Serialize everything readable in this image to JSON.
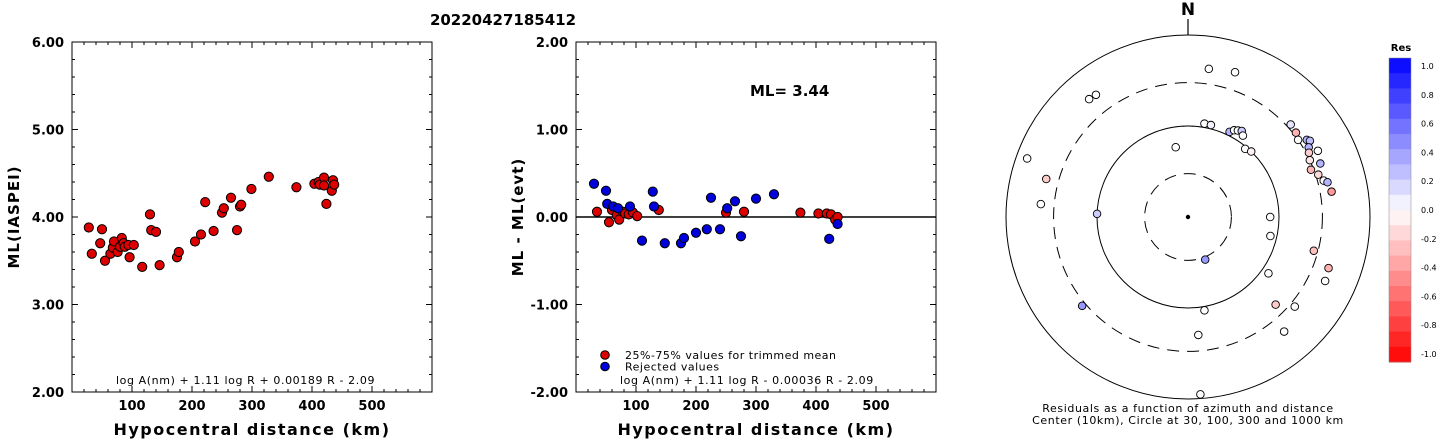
{
  "title": "20220427185412",
  "chart_data": [
    {
      "type": "scatter",
      "xlabel": "Hypocentral distance (km)",
      "ylabel": "ML(IASPEI)",
      "xlim": [
        0,
        600
      ],
      "ylim": [
        2.0,
        6.0
      ],
      "x_ticks": [
        "100",
        "200",
        "300",
        "400",
        "500"
      ],
      "y_ticks": [
        "2.00",
        "3.00",
        "4.00",
        "5.00",
        "6.00"
      ],
      "formula": "log A(nm) + 1.11 log R + 0.00189 R - 2.09",
      "series": [
        {
          "color": "#dd0000",
          "points": [
            [
              28,
              3.88
            ],
            [
              33,
              3.58
            ],
            [
              47,
              3.7
            ],
            [
              50,
              3.86
            ],
            [
              55,
              3.5
            ],
            [
              64,
              3.58
            ],
            [
              68,
              3.65
            ],
            [
              70,
              3.72
            ],
            [
              76,
              3.6
            ],
            [
              80,
              3.66
            ],
            [
              83,
              3.76
            ],
            [
              86,
              3.7
            ],
            [
              88,
              3.66
            ],
            [
              94,
              3.68
            ],
            [
              96,
              3.54
            ],
            [
              103,
              3.68
            ],
            [
              117,
              3.43
            ],
            [
              130,
              4.03
            ],
            [
              132,
              3.85
            ],
            [
              140,
              3.83
            ],
            [
              146,
              3.45
            ],
            [
              175,
              3.54
            ],
            [
              178,
              3.6
            ],
            [
              205,
              3.72
            ],
            [
              215,
              3.8
            ],
            [
              222,
              4.17
            ],
            [
              236,
              3.84
            ],
            [
              250,
              4.05
            ],
            [
              253,
              4.1
            ],
            [
              265,
              4.22
            ],
            [
              275,
              3.85
            ],
            [
              280,
              4.12
            ],
            [
              282,
              4.14
            ],
            [
              299,
              4.32
            ],
            [
              328,
              4.46
            ],
            [
              374,
              4.34
            ],
            [
              404,
              4.38
            ],
            [
              411,
              4.4
            ],
            [
              413,
              4.37
            ],
            [
              420,
              4.45
            ],
            [
              420,
              4.36
            ],
            [
              424,
              4.15
            ],
            [
              433,
              4.3
            ],
            [
              435,
              4.42
            ],
            [
              437,
              4.37
            ]
          ]
        }
      ]
    },
    {
      "type": "scatter",
      "xlabel": "Hypocentral distance (km)",
      "ylabel": "ML - ML(evt)",
      "xlim": [
        0,
        600
      ],
      "ylim": [
        -2.0,
        2.0
      ],
      "x_ticks": [
        "100",
        "200",
        "300",
        "400",
        "500"
      ],
      "y_ticks": [
        "-2.00",
        "-1.00",
        "0.00",
        "1.00",
        "2.00"
      ],
      "annotation": "ML= 3.44",
      "formula": "log A(nm) + 1.11 log R - 0.00036 R - 2.09",
      "legend": [
        {
          "label": "25%-75% values for trimmed mean",
          "color": "#dd0000"
        },
        {
          "label": "Rejected values",
          "color": "#0000dd"
        }
      ],
      "series": [
        {
          "name": "25%-75% values for trimmed mean",
          "color": "#dd0000",
          "points": [
            [
              35,
              0.06
            ],
            [
              55,
              -0.06
            ],
            [
              60,
              0.08
            ],
            [
              68,
              0.02
            ],
            [
              72,
              -0.03
            ],
            [
              78,
              0.06
            ],
            [
              82,
              0.04
            ],
            [
              88,
              0.03
            ],
            [
              95,
              0.05
            ],
            [
              102,
              0.01
            ],
            [
              138,
              0.08
            ],
            [
              250,
              0.05
            ],
            [
              280,
              0.06
            ],
            [
              374,
              0.05
            ],
            [
              404,
              0.04
            ],
            [
              418,
              0.04
            ],
            [
              425,
              0.03
            ],
            [
              432,
              -0.03
            ],
            [
              436,
              0.0
            ]
          ]
        },
        {
          "name": "Rejected values",
          "color": "#0000dd",
          "points": [
            [
              30,
              0.38
            ],
            [
              50,
              0.3
            ],
            [
              52,
              0.15
            ],
            [
              62,
              0.12
            ],
            [
              70,
              0.1
            ],
            [
              90,
              0.12
            ],
            [
              110,
              -0.27
            ],
            [
              128,
              0.29
            ],
            [
              130,
              0.12
            ],
            [
              148,
              -0.3
            ],
            [
              175,
              -0.3
            ],
            [
              180,
              -0.24
            ],
            [
              200,
              -0.18
            ],
            [
              218,
              -0.14
            ],
            [
              225,
              0.22
            ],
            [
              240,
              -0.14
            ],
            [
              252,
              0.1
            ],
            [
              265,
              0.18
            ],
            [
              275,
              -0.22
            ],
            [
              300,
              0.21
            ],
            [
              330,
              0.26
            ],
            [
              422,
              -0.25
            ],
            [
              436,
              -0.08
            ]
          ]
        }
      ]
    },
    {
      "type": "polar-scatter",
      "north_label": "N",
      "caption_line1": "Residuals as a function of azimuth and distance",
      "caption_line2": "Center (10km), Circle at 30, 100, 300 and 1000 km",
      "rings_km": [
        30,
        100,
        300,
        1000
      ],
      "colorbar_title": "Res",
      "colorbar_ticks": [
        "1.0",
        "0.8",
        "0.6",
        "0.4",
        "0.2",
        "0.0",
        "-0.2",
        "-0.4",
        "-0.6",
        "-0.8",
        "-1.0"
      ],
      "points": [
        {
          "az": 320,
          "dist": 490,
          "res": 0.0
        },
        {
          "az": 323,
          "dist": 480,
          "res": 0.0
        },
        {
          "az": 8,
          "dist": 440,
          "res": 0.0
        },
        {
          "az": 18,
          "dist": 470,
          "res": 0.0
        },
        {
          "az": 10,
          "dist": 110,
          "res": 0.0
        },
        {
          "az": 14,
          "dist": 110,
          "res": 0.05
        },
        {
          "az": 26,
          "dist": 110,
          "res": 0.3
        },
        {
          "az": 28,
          "dist": 120,
          "res": 0.0
        },
        {
          "az": 30,
          "dist": 125,
          "res": 0.0
        },
        {
          "az": 32,
          "dist": 130,
          "res": 0.2
        },
        {
          "az": 34,
          "dist": 120,
          "res": 0.0
        },
        {
          "az": 40,
          "dist": 95,
          "res": 0.0
        },
        {
          "az": 44,
          "dist": 100,
          "res": -0.05
        },
        {
          "az": 350,
          "dist": 60,
          "res": 0.0
        },
        {
          "az": 48,
          "dist": 330,
          "res": 0.1
        },
        {
          "az": 52,
          "dist": 320,
          "res": -0.3
        },
        {
          "az": 55,
          "dist": 300,
          "res": 0.0
        },
        {
          "az": 57,
          "dist": 360,
          "res": 0.3
        },
        {
          "az": 58,
          "dist": 380,
          "res": 0.25
        },
        {
          "az": 60,
          "dist": 340,
          "res": 0.3
        },
        {
          "az": 62,
          "dist": 320,
          "res": -0.2
        },
        {
          "az": 63,
          "dist": 400,
          "res": 0.0
        },
        {
          "az": 65,
          "dist": 300,
          "res": -0.1
        },
        {
          "az": 68,
          "dist": 370,
          "res": 0.3
        },
        {
          "az": 69,
          "dist": 280,
          "res": -0.3
        },
        {
          "az": 72,
          "dist": 320,
          "res": -0.15
        },
        {
          "az": 75,
          "dist": 350,
          "res": 0.0
        },
        {
          "az": 76,
          "dist": 380,
          "res": 0.3
        },
        {
          "az": 80,
          "dist": 400,
          "res": -0.4
        },
        {
          "az": 90,
          "dist": 80,
          "res": 0.0
        },
        {
          "az": 103,
          "dist": 85,
          "res": 0.0
        },
        {
          "az": 105,
          "dist": 270,
          "res": -0.25
        },
        {
          "az": 110,
          "dist": 440,
          "res": -0.3
        },
        {
          "az": 115,
          "dist": 460,
          "res": 0.0
        },
        {
          "az": 125,
          "dist": 120,
          "res": 0.0
        },
        {
          "az": 130,
          "dist": 340,
          "res": 0.0
        },
        {
          "az": 135,
          "dist": 230,
          "res": -0.2
        },
        {
          "az": 140,
          "dist": 440,
          "res": 0.0
        },
        {
          "az": 158,
          "dist": 32,
          "res": 0.4
        },
        {
          "az": 170,
          "dist": 110,
          "res": 0.0
        },
        {
          "az": 175,
          "dist": 200,
          "res": 0.0
        },
        {
          "az": 176,
          "dist": 900,
          "res": 0.0
        },
        {
          "az": 230,
          "dist": 330,
          "res": 0.4
        },
        {
          "az": 275,
          "dist": 420,
          "res": 0.0
        },
        {
          "az": 272,
          "dist": 100,
          "res": 0.2
        },
        {
          "az": 285,
          "dist": 410,
          "res": -0.2
        },
        {
          "az": 290,
          "dist": 760,
          "res": 0.0
        }
      ]
    }
  ]
}
